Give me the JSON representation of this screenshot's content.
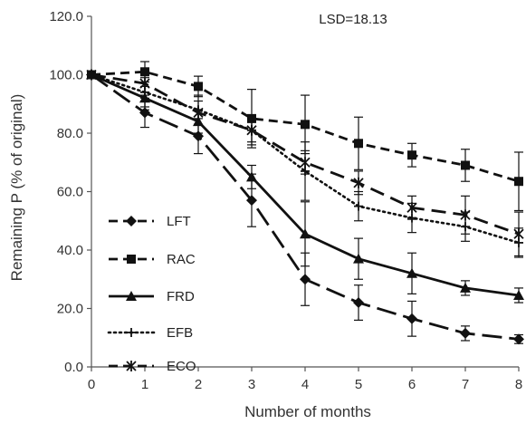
{
  "chart_data": {
    "type": "line",
    "title": "",
    "xlabel": "Number of months",
    "ylabel": "Remaining P (% of original)",
    "annotation": "LSD=18.13",
    "xlim": [
      0,
      8
    ],
    "ylim": [
      0,
      120
    ],
    "x_ticks": [
      0,
      1,
      2,
      3,
      4,
      5,
      6,
      7,
      8
    ],
    "y_ticks": [
      0,
      20,
      40,
      60,
      80,
      100,
      120
    ],
    "y_tick_labels": [
      "0.0",
      "20.0",
      "40.0",
      "60.0",
      "80.0",
      "100.0",
      "120.0"
    ],
    "x": [
      0,
      1,
      2,
      3,
      4,
      5,
      6,
      7,
      8
    ],
    "grid": false,
    "legend_position": "left-center",
    "series": [
      {
        "name": "LFT",
        "marker": "diamond",
        "line_style": "dashed-long",
        "values": [
          100,
          87,
          79,
          57,
          30,
          22,
          16.5,
          11.5,
          9.5
        ],
        "errors": [
          0,
          5,
          6,
          9,
          9,
          6,
          6,
          2.5,
          1.5
        ]
      },
      {
        "name": "RAC",
        "marker": "square",
        "line_style": "dashed",
        "values": [
          100,
          101,
          96,
          85,
          83,
          76.5,
          72.5,
          69,
          63.5
        ],
        "errors": [
          0,
          3.5,
          3.5,
          10,
          10,
          9,
          4,
          5.5,
          10
        ]
      },
      {
        "name": "FRD",
        "marker": "triangle",
        "line_style": "solid",
        "values": [
          100,
          92,
          84,
          65,
          45.5,
          37,
          32,
          27,
          24.5
        ],
        "errors": [
          0,
          4,
          4,
          4,
          11,
          7,
          7,
          2.5,
          2.5
        ]
      },
      {
        "name": "EFB",
        "marker": "plus",
        "line_style": "dotted",
        "values": [
          100,
          94,
          88,
          81,
          67,
          55,
          51,
          48,
          42.5
        ],
        "errors": [
          0,
          5,
          5,
          5,
          10,
          5,
          5,
          5,
          5
        ]
      },
      {
        "name": "ECO",
        "marker": "asterisk",
        "line_style": "dash-long",
        "values": [
          100,
          97,
          87,
          81,
          70,
          63,
          54.5,
          52,
          45.5
        ],
        "errors": [
          0,
          4,
          4,
          4,
          4,
          4,
          4,
          6.5,
          7.5
        ]
      }
    ]
  },
  "colors": {
    "series": "#111111",
    "axis": "#555555",
    "text": "#333333"
  }
}
